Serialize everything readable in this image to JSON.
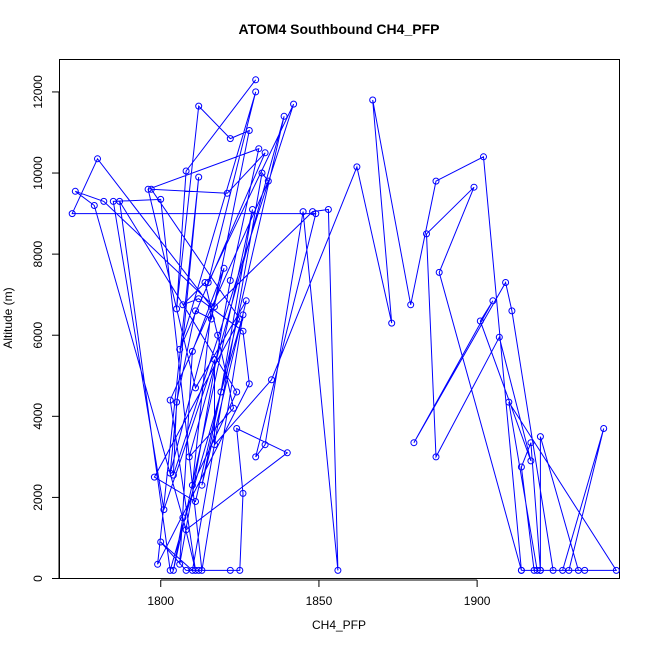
{
  "chart_data": {
    "type": "line",
    "title": "ATOM4 Southbound CH4_PFP",
    "xlabel": "CH4_PFP",
    "ylabel": "Altitude (m)",
    "xlim": [
      1768,
      1945
    ],
    "ylim": [
      0,
      12800
    ],
    "xticks": [
      1800,
      1850,
      1900
    ],
    "yticks": [
      0,
      2000,
      4000,
      6000,
      8000,
      10000,
      12000
    ],
    "grid": false,
    "color": "#0000ff",
    "marker": "open-circle",
    "series": [
      {
        "x": [
          1830,
          1808,
          1805,
          1812,
          1822,
          1828,
          1816,
          1811,
          1805,
          1804,
          1842,
          1815,
          1830,
          1806,
          1833,
          1821,
          1797,
          1825,
          1798,
          1811,
          1839,
          1809,
          1823,
          1818,
          1814,
          1807,
          1812,
          1826,
          1828,
          1799,
          1812,
          1803,
          1820,
          1810,
          1806,
          1822,
          1831,
          1796,
          1811,
          1827,
          1813,
          1819,
          1829,
          1804,
          1807,
          1811,
          1803,
          1834,
          1832,
          1810,
          1800,
          1808,
          1812,
          1822,
          1825,
          1826,
          1824,
          1840,
          1808,
          1779,
          1773,
          1782,
          1817,
          1848,
          1853,
          1856,
          1845,
          1833,
          1830,
          1849,
          1772,
          1780,
          1816,
          1810,
          1824,
          1787,
          1803,
          1826,
          1813,
          1800,
          1785,
          1801,
          1817,
          1817,
          1835,
          1862,
          1873,
          1867,
          1879,
          1887,
          1902,
          1914,
          1888,
          1899,
          1884,
          1887,
          1907,
          1917,
          1901,
          1905,
          1880,
          1909,
          1911,
          1924,
          1920,
          1917,
          1914,
          1918,
          1932,
          1920,
          1920,
          1914,
          1927,
          1940,
          1929,
          1934,
          1944,
          1910,
          1919
        ],
        "y": [
          12300,
          10050,
          6650,
          11650,
          10850,
          11050,
          6400,
          6600,
          4350,
          2550,
          11700,
          7300,
          12000,
          5650,
          10500,
          9500,
          9600,
          6400,
          2500,
          1900,
          11400,
          3000,
          4200,
          6000,
          7300,
          6750,
          6900,
          6100,
          4800,
          350,
          9900,
          2600,
          7650,
          5600,
          350,
          7350,
          10600,
          9600,
          4700,
          6850,
          2300,
          4600,
          9100,
          200,
          1500,
          200,
          4400,
          9800,
          10000,
          200,
          900,
          200,
          200,
          200,
          200,
          2100,
          3700,
          3100,
          1200,
          9200,
          9550,
          9300,
          6700,
          9050,
          9100,
          200,
          9050,
          3300,
          3000,
          9000,
          9000,
          10350,
          6700,
          2300,
          4600,
          9300,
          200,
          6500,
          200,
          9350,
          9300,
          1700,
          5400,
          3300,
          4900,
          10150,
          6300,
          11800,
          6750,
          9800,
          10400,
          200,
          7550,
          9650,
          8500,
          3000,
          5950,
          2900,
          6350,
          6850,
          3350,
          7300,
          6600,
          200,
          200,
          3350,
          2750,
          200,
          200,
          3500,
          200,
          200,
          200,
          3700,
          200,
          200,
          200,
          4350,
          200
        ]
      }
    ]
  }
}
